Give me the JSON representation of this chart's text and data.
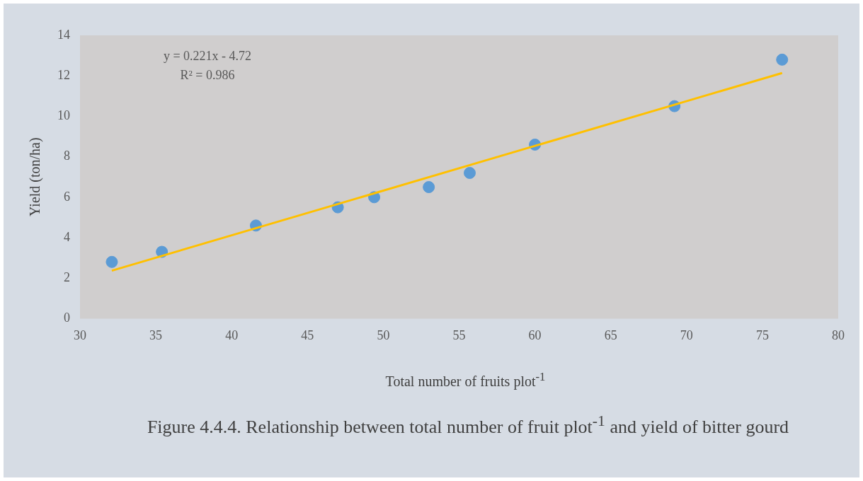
{
  "chart_data": {
    "type": "scatter",
    "title": "Figure 4.4.4. Relationship between total number of fruit plot$^{-1}$ and yield of bitter gourd",
    "xlabel": "Total number of fruits plot$^{-1}$",
    "ylabel": "Yield (ton/ha)",
    "xlim": [
      30,
      80
    ],
    "xticks": [
      30,
      35,
      40,
      45,
      50,
      55,
      60,
      65,
      70,
      75,
      80
    ],
    "ylim": [
      0,
      14
    ],
    "yticks": [
      0,
      2,
      4,
      6,
      8,
      10,
      12,
      14
    ],
    "grid": false,
    "legend": false,
    "marker": "circle",
    "series": [
      {
        "type": "scatter",
        "color": "#5b9bd5",
        "x": [
          32.1,
          35.4,
          41.6,
          47.0,
          49.4,
          53.0,
          55.7,
          60.0,
          69.2,
          76.3
        ],
        "values": [
          2.8,
          3.3,
          4.6,
          5.5,
          6.0,
          6.5,
          7.2,
          8.6,
          10.5,
          12.8
        ]
      },
      {
        "type": "line",
        "color": "#ffc000",
        "marker": "none",
        "x": [
          32.1,
          76.3
        ],
        "values": [
          2.37,
          12.14
        ]
      }
    ],
    "annotations": [
      "y = 0.221x - 4.72",
      "R² = 0.986"
    ]
  }
}
